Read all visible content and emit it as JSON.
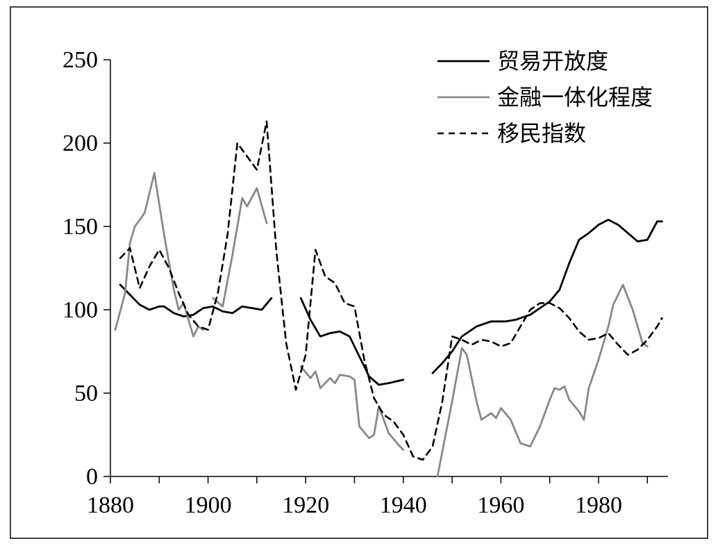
{
  "chart_data": {
    "type": "line",
    "title": "",
    "xlabel": "",
    "ylabel": "",
    "xlim": [
      1880,
      1995
    ],
    "ylim": [
      0,
      250
    ],
    "x_ticks": [
      1880,
      1900,
      1920,
      1940,
      1960,
      1980
    ],
    "y_ticks": [
      0,
      50,
      100,
      150,
      200,
      250
    ],
    "grid": false,
    "legend_position": "top-right",
    "series": [
      {
        "name": "贸易开放度",
        "color": "#000000",
        "style": "solid",
        "segments": [
          [
            [
              1882,
              115
            ],
            [
              1884,
              109
            ],
            [
              1886,
              103
            ],
            [
              1888,
              100
            ],
            [
              1890,
              102
            ],
            [
              1891,
              102
            ],
            [
              1893,
              98
            ],
            [
              1895,
              96
            ],
            [
              1897,
              97
            ],
            [
              1899,
              101
            ],
            [
              1901,
              102
            ],
            [
              1903,
              99
            ],
            [
              1905,
              98
            ],
            [
              1907,
              102
            ],
            [
              1909,
              101
            ],
            [
              1911,
              100
            ],
            [
              1913,
              107
            ]
          ],
          [
            [
              1919,
              107
            ],
            [
              1921,
              94
            ],
            [
              1923,
              84
            ],
            [
              1925,
              86
            ],
            [
              1927,
              87
            ],
            [
              1929,
              84
            ],
            [
              1931,
              72
            ],
            [
              1933,
              60
            ],
            [
              1935,
              55
            ],
            [
              1937,
              56
            ],
            [
              1940,
              58
            ]
          ],
          [
            [
              1946,
              62
            ],
            [
              1948,
              68
            ],
            [
              1950,
              75
            ],
            [
              1952,
              84
            ],
            [
              1955,
              90
            ],
            [
              1958,
              93
            ],
            [
              1961,
              93
            ],
            [
              1963,
              94
            ],
            [
              1966,
              97
            ],
            [
              1968,
              101
            ],
            [
              1970,
              105
            ],
            [
              1972,
              112
            ],
            [
              1974,
              128
            ],
            [
              1976,
              142
            ],
            [
              1978,
              146
            ],
            [
              1980,
              151
            ],
            [
              1982,
              154
            ],
            [
              1984,
              151
            ],
            [
              1986,
              146
            ],
            [
              1988,
              141
            ],
            [
              1990,
              142
            ],
            [
              1992,
              153
            ],
            [
              1993,
              153
            ]
          ]
        ]
      },
      {
        "name": "金融一体化程度",
        "color": "#888888",
        "style": "solid",
        "segments": [
          [
            [
              1881,
              88
            ],
            [
              1883,
              110
            ],
            [
              1884,
              140
            ],
            [
              1885,
              150
            ],
            [
              1887,
              158
            ],
            [
              1889,
              182
            ],
            [
              1891,
              145
            ],
            [
              1893,
              112
            ],
            [
              1894,
              100
            ],
            [
              1895,
              104
            ],
            [
              1897,
              84
            ],
            [
              1898,
              90
            ],
            [
              1899,
              88
            ]
          ],
          [
            [
              1901,
              107
            ],
            [
              1903,
              102
            ],
            [
              1905,
              133
            ],
            [
              1907,
              167
            ],
            [
              1908,
              162
            ],
            [
              1910,
              173
            ],
            [
              1912,
              152
            ]
          ],
          [
            [
              1919,
              66
            ],
            [
              1921,
              59
            ],
            [
              1922,
              63
            ],
            [
              1923,
              53
            ],
            [
              1925,
              59
            ],
            [
              1926,
              56
            ],
            [
              1927,
              61
            ],
            [
              1929,
              60
            ],
            [
              1930,
              58
            ],
            [
              1931,
              30
            ],
            [
              1933,
              23
            ],
            [
              1934,
              25
            ],
            [
              1935,
              42
            ],
            [
              1937,
              26
            ],
            [
              1939,
              19
            ],
            [
              1940,
              16
            ]
          ],
          [
            [
              1947,
              0
            ],
            [
              1950,
              45
            ],
            [
              1952,
              77
            ],
            [
              1953,
              73
            ],
            [
              1955,
              45
            ],
            [
              1956,
              34
            ],
            [
              1958,
              38
            ],
            [
              1959,
              35
            ],
            [
              1960,
              41
            ],
            [
              1962,
              34
            ],
            [
              1964,
              20
            ],
            [
              1966,
              18
            ],
            [
              1968,
              30
            ],
            [
              1970,
              46
            ],
            [
              1971,
              53
            ],
            [
              1972,
              52
            ],
            [
              1973,
              54
            ],
            [
              1974,
              46
            ],
            [
              1976,
              39
            ],
            [
              1977,
              34
            ],
            [
              1978,
              53
            ],
            [
              1980,
              70
            ],
            [
              1982,
              90
            ],
            [
              1983,
              103
            ],
            [
              1985,
              115
            ],
            [
              1987,
              100
            ],
            [
              1989,
              80
            ],
            [
              1990,
              78
            ]
          ]
        ]
      },
      {
        "name": "移民指数",
        "color": "#000000",
        "style": "dashed",
        "segments": [
          [
            [
              1882,
              131
            ],
            [
              1884,
              137
            ],
            [
              1886,
              113
            ],
            [
              1888,
              126
            ],
            [
              1890,
              136
            ],
            [
              1892,
              125
            ],
            [
              1894,
              110
            ],
            [
              1896,
              97
            ],
            [
              1898,
              90
            ],
            [
              1900,
              88
            ],
            [
              1902,
              110
            ],
            [
              1904,
              145
            ],
            [
              1906,
              200
            ],
            [
              1908,
              192
            ],
            [
              1910,
              184
            ],
            [
              1912,
              213
            ],
            [
              1914,
              135
            ],
            [
              1916,
              80
            ],
            [
              1918,
              52
            ],
            [
              1920,
              73
            ],
            [
              1922,
              136
            ],
            [
              1924,
              120
            ],
            [
              1926,
              116
            ],
            [
              1928,
              104
            ],
            [
              1930,
              102
            ],
            [
              1932,
              70
            ],
            [
              1934,
              47
            ],
            [
              1936,
              37
            ],
            [
              1938,
              33
            ],
            [
              1940,
              25
            ],
            [
              1942,
              12
            ],
            [
              1944,
              10
            ],
            [
              1946,
              18
            ],
            [
              1948,
              45
            ],
            [
              1950,
              84
            ],
            [
              1952,
              82
            ],
            [
              1954,
              79
            ],
            [
              1956,
              82
            ],
            [
              1958,
              81
            ],
            [
              1960,
              78
            ],
            [
              1962,
              80
            ],
            [
              1964,
              90
            ],
            [
              1966,
              100
            ],
            [
              1968,
              104
            ],
            [
              1970,
              104
            ],
            [
              1972,
              101
            ],
            [
              1974,
              95
            ],
            [
              1976,
              87
            ],
            [
              1978,
              82
            ],
            [
              1980,
              83
            ],
            [
              1982,
              86
            ],
            [
              1984,
              79
            ],
            [
              1986,
              73
            ],
            [
              1988,
              76
            ],
            [
              1990,
              82
            ],
            [
              1992,
              90
            ],
            [
              1993,
              95
            ]
          ]
        ]
      }
    ]
  }
}
